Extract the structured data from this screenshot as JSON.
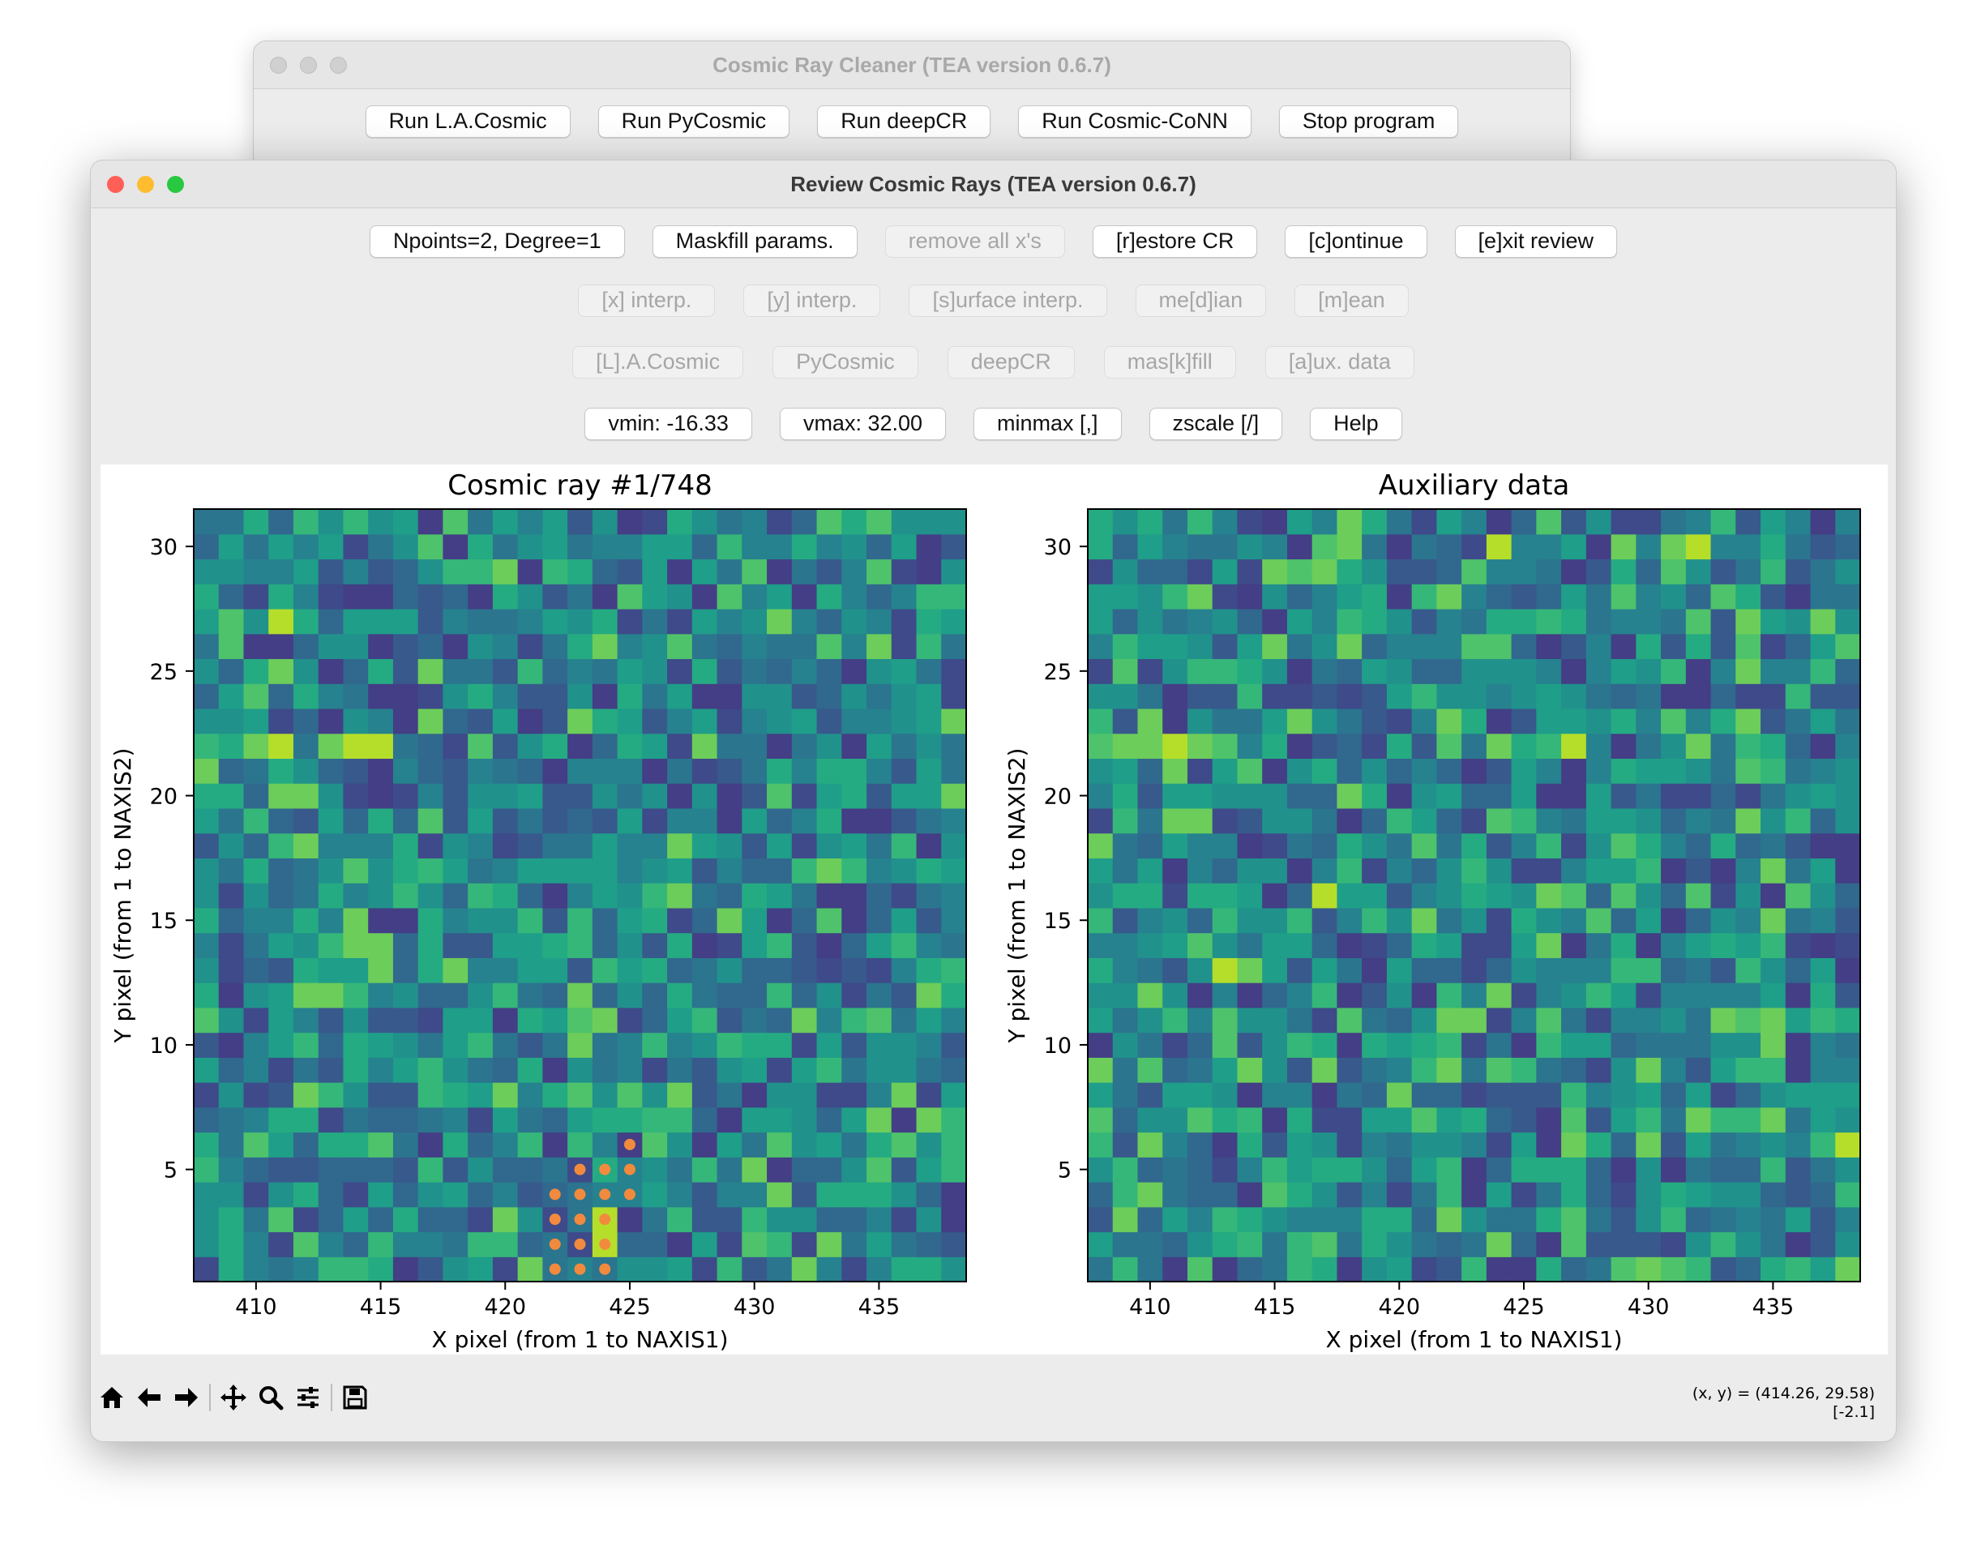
{
  "back_window": {
    "title": "Cosmic Ray Cleaner (TEA version 0.6.7)",
    "buttons": [
      "Run L.A.Cosmic",
      "Run PyCosmic",
      "Run deepCR",
      "Run Cosmic-CoNN",
      "Stop program"
    ]
  },
  "front_window": {
    "title": "Review Cosmic Rays (TEA version 0.6.7)",
    "row1": [
      {
        "label": "Npoints=2, Degree=1",
        "enabled": true
      },
      {
        "label": "Maskfill params.",
        "enabled": true
      },
      {
        "label": "remove all x's",
        "enabled": false
      },
      {
        "label": "[r]estore CR",
        "enabled": true
      },
      {
        "label": "[c]ontinue",
        "enabled": true
      },
      {
        "label": "[e]xit review",
        "enabled": true
      }
    ],
    "row2": [
      {
        "label": "[x] interp.",
        "enabled": false
      },
      {
        "label": "[y] interp.",
        "enabled": false
      },
      {
        "label": "[s]urface interp.",
        "enabled": false
      },
      {
        "label": "me[d]ian",
        "enabled": false
      },
      {
        "label": "[m]ean",
        "enabled": false
      }
    ],
    "row3": [
      {
        "label": "[L].A.Cosmic",
        "enabled": false
      },
      {
        "label": "PyCosmic",
        "enabled": false
      },
      {
        "label": "deepCR",
        "enabled": false
      },
      {
        "label": "mas[k]fill",
        "enabled": false
      },
      {
        "label": "[a]ux. data",
        "enabled": false
      }
    ],
    "row4": [
      {
        "label": "vmin: -16.33",
        "enabled": true
      },
      {
        "label": "vmax: 32.00",
        "enabled": true
      },
      {
        "label": "minmax [,]",
        "enabled": true
      },
      {
        "label": "zscale [/]",
        "enabled": true
      },
      {
        "label": "Help",
        "enabled": true
      }
    ]
  },
  "toolbar_icons": [
    "home-icon",
    "back-arrow-icon",
    "forward-arrow-icon",
    "pan-icon",
    "zoom-icon",
    "configure-subplots-icon",
    "save-icon"
  ],
  "status": {
    "coords": "(x, y) = (414.26, 29.58)",
    "value": "[-2.1]"
  },
  "chart_data": [
    {
      "type": "heatmap",
      "title": "Cosmic ray #1/748",
      "xlabel": "X pixel (from 1 to NAXIS1)",
      "ylabel": "Y pixel (from 1 to NAXIS2)",
      "xlim": [
        407.5,
        438.5
      ],
      "ylim": [
        0.5,
        31.5
      ],
      "xticks": [
        410,
        415,
        420,
        425,
        430,
        435
      ],
      "yticks": [
        5,
        10,
        15,
        20,
        25,
        30
      ],
      "colormap": "viridis",
      "vmin": -16.33,
      "vmax": 32.0,
      "bright_pixels": [
        [
          411,
          22
        ],
        [
          414,
          22
        ],
        [
          415,
          22
        ],
        [
          411,
          27
        ],
        [
          424,
          3
        ],
        [
          424,
          2
        ]
      ],
      "cr_marker_color": "#f28a3e",
      "cr_pixels": [
        [
          425,
          6
        ],
        [
          423,
          5
        ],
        [
          424,
          5
        ],
        [
          425,
          5
        ],
        [
          422,
          4
        ],
        [
          423,
          4
        ],
        [
          424,
          4
        ],
        [
          425,
          4
        ],
        [
          422,
          3
        ],
        [
          423,
          3
        ],
        [
          424,
          3
        ],
        [
          422,
          2
        ],
        [
          423,
          2
        ],
        [
          424,
          2
        ],
        [
          422,
          1
        ],
        [
          423,
          1
        ],
        [
          424,
          1
        ]
      ]
    },
    {
      "type": "heatmap",
      "title": "Auxiliary data",
      "xlabel": "X pixel (from 1 to NAXIS1)",
      "ylabel": "Y pixel (from 1 to NAXIS2)",
      "xlim": [
        407.5,
        438.5
      ],
      "ylim": [
        0.5,
        31.5
      ],
      "xticks": [
        410,
        415,
        420,
        425,
        430,
        435
      ],
      "yticks": [
        5,
        10,
        15,
        20,
        25,
        30
      ],
      "colormap": "viridis",
      "bright_pixels": [
        [
          427,
          22
        ],
        [
          411,
          22
        ],
        [
          424,
          30
        ],
        [
          432,
          30
        ],
        [
          413,
          13
        ],
        [
          417,
          16
        ],
        [
          438,
          6
        ]
      ]
    }
  ]
}
